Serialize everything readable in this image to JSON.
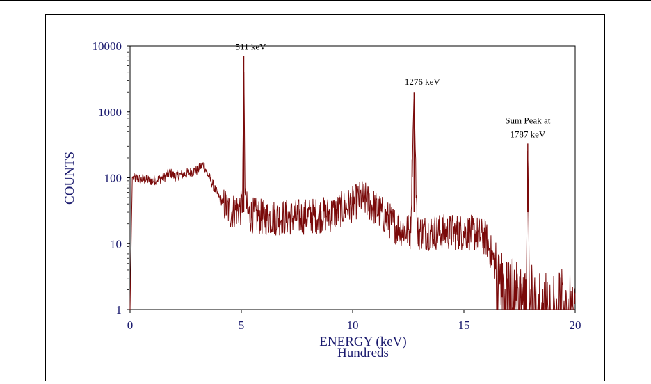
{
  "chart_data": {
    "type": "line",
    "title": "",
    "xlabel": "ENERGY (keV)",
    "xlabel_sub": "Hundreds",
    "ylabel": "COUNTS",
    "xlim": [
      0,
      20
    ],
    "ylim": [
      1,
      10000
    ],
    "y_scale": "log",
    "x_ticks": [
      "0",
      "5",
      "10",
      "15",
      "20"
    ],
    "y_ticks": [
      "1",
      "10",
      "100",
      "1000",
      "10000"
    ],
    "grid": false,
    "series_color": "#7a0a0a",
    "text_color": "#1a1a6e",
    "series": [
      {
        "x": [
          0.0,
          0.1,
          0.5,
          1.0,
          1.5,
          1.8,
          2.0,
          2.5,
          3.0,
          3.3,
          3.5,
          4.0,
          4.5,
          5.0,
          5.05,
          5.11,
          5.17,
          5.3,
          6.0,
          7.0,
          8.0,
          9.0,
          9.5,
          10.0,
          10.4,
          10.8,
          11.5,
          12.0,
          12.6,
          12.76,
          12.9,
          13.5,
          14.0,
          15.0,
          15.6,
          16.0,
          16.3,
          16.6,
          17.0,
          17.5,
          17.8,
          17.87,
          17.95,
          18.3,
          19.0,
          20.0
        ],
        "y": [
          1,
          100,
          95,
          90,
          100,
          120,
          105,
          115,
          130,
          160,
          110,
          50,
          30,
          35,
          45,
          7000,
          45,
          28,
          25,
          25,
          26,
          28,
          33,
          40,
          50,
          40,
          25,
          18,
          15,
          2000,
          15,
          15,
          15,
          15,
          14,
          12,
          6,
          3,
          2.5,
          2,
          1.5,
          330,
          2,
          1.5,
          1.5,
          1.5
        ]
      }
    ],
    "annotations": [
      {
        "text": "511 keV",
        "x": 5.11,
        "y": 7000
      },
      {
        "text": "1276 keV",
        "x": 12.76,
        "y": 2000
      },
      {
        "text": "Sum Peak at",
        "x": 17.87,
        "y": 330
      },
      {
        "text": "1787 keV",
        "x": 17.87,
        "y": 330
      }
    ]
  }
}
